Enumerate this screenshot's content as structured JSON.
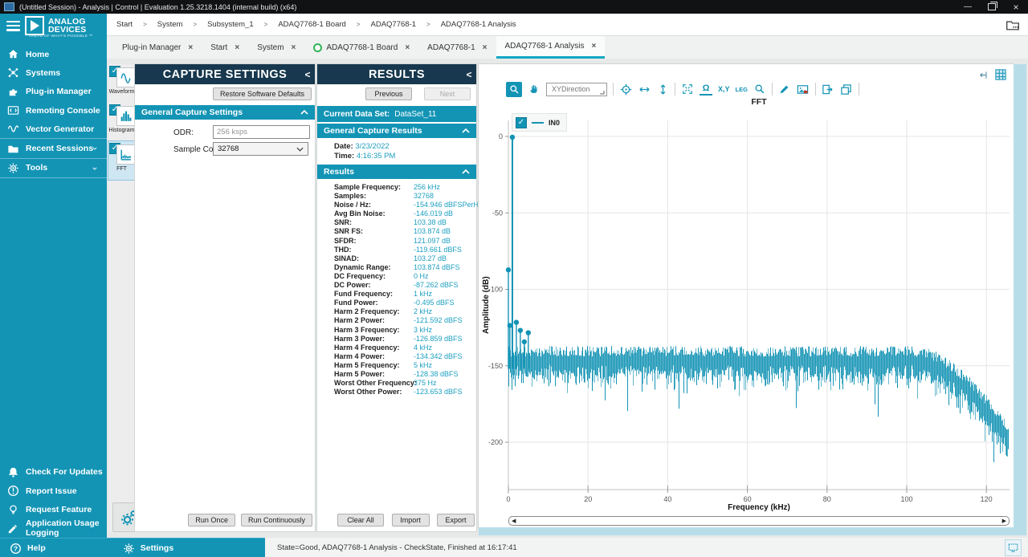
{
  "window": {
    "title": "(Untitled Session) - Analysis | Control | Evaluation 1.25.3218.1404 (internal build) (x64)",
    "minimize_glyph": "—",
    "close_glyph": "×"
  },
  "brand": {
    "line1": "ANALOG",
    "line2": "DEVICES",
    "tagline": "AHEAD OF WHAT'S POSSIBLE ™"
  },
  "breadcrumb": {
    "separator": ">",
    "items": [
      "Start",
      "System",
      "Subsystem_1",
      "ADAQ7768-1 Board",
      "ADAQ7768-1",
      "ADAQ7768-1 Analysis"
    ]
  },
  "tabs": {
    "close_glyph": "×",
    "items": [
      {
        "label": "Plug-in Manager"
      },
      {
        "label": "Start"
      },
      {
        "label": "System"
      },
      {
        "label": "ADAQ7768-1 Board",
        "dot": true
      },
      {
        "label": "ADAQ7768-1"
      },
      {
        "label": "ADAQ7768-1 Analysis",
        "active": true
      }
    ]
  },
  "sidebar": {
    "top": [
      {
        "icon": "home-icon",
        "label": "Home"
      },
      {
        "icon": "systems-icon",
        "label": "Systems"
      },
      {
        "icon": "plugin-icon",
        "label": "Plug-in Manager"
      },
      {
        "icon": "console-icon",
        "label": "Remoting Console"
      },
      {
        "icon": "vector-icon",
        "label": "Vector Generator"
      },
      {
        "icon": "sessions-icon",
        "label": "Recent Sessions",
        "chevron": true,
        "divider": true
      },
      {
        "icon": "tools-icon",
        "label": "Tools",
        "chevron": true,
        "divider": true,
        "divider_bottom": true
      }
    ],
    "bottom": [
      {
        "icon": "bell-icon",
        "label": "Check For Updates"
      },
      {
        "icon": "report-icon",
        "label": "Report Issue"
      },
      {
        "icon": "bulb-icon",
        "label": "Request Feature"
      },
      {
        "icon": "logging-icon",
        "label": "Application Usage Logging"
      }
    ],
    "help_label": "Help",
    "settings_label": "Settings"
  },
  "toolstrip": {
    "items": [
      {
        "icon": "waveform-icon",
        "label": "Waveform",
        "checked": true
      },
      {
        "icon": "histogram-icon",
        "label": "Histogram",
        "checked": true
      },
      {
        "icon": "fft-icon",
        "label": "FFT",
        "checked": true,
        "selected": true
      }
    ]
  },
  "capture": {
    "title": "CAPTURE SETTINGS",
    "restore_label": "Restore Software Defaults",
    "section_label": "General Capture Settings",
    "odr_label": "ODR:",
    "odr_value": "256 ksps",
    "sample_count_label": "Sample Count:",
    "sample_count_value": "32768",
    "run_once_label": "Run Once",
    "run_continuously_label": "Run Continuously"
  },
  "results": {
    "title": "RESULTS",
    "previous_label": "Previous",
    "next_label": "Next",
    "dataset_label": "Current Data Set:",
    "dataset_value": "DataSet_11",
    "general_label": "General Capture Results",
    "date_label": "Date:",
    "date_value": "3/23/2022",
    "time_label": "Time:",
    "time_value": "4:16:35 PM",
    "section_label": "Results",
    "rows": [
      [
        "Sample Frequency:",
        "256 kHz"
      ],
      [
        "Samples:",
        "32768"
      ],
      [
        "Noise / Hz:",
        "-154.946 dBFSPerHz"
      ],
      [
        "Avg Bin Noise:",
        "-146.019 dB"
      ],
      [
        "SNR:",
        "103.38 dB"
      ],
      [
        "SNR FS:",
        "103.874 dB"
      ],
      [
        "SFDR:",
        "121.097 dB"
      ],
      [
        "THD:",
        "-119.661 dBFS"
      ],
      [
        "SINAD:",
        "103.27 dB"
      ],
      [
        "Dynamic Range:",
        "103.874 dBFS"
      ],
      [
        "DC Frequency:",
        "0 Hz"
      ],
      [
        "DC Power:",
        "-87.262 dBFS"
      ],
      [
        "Fund Frequency:",
        "1 kHz"
      ],
      [
        "Fund Power:",
        "-0.495 dBFS"
      ],
      [
        "Harm 2 Frequency:",
        "2 kHz"
      ],
      [
        "Harm 2 Power:",
        "-121.592 dBFS"
      ],
      [
        "Harm 3 Frequency:",
        "3 kHz"
      ],
      [
        "Harm 3 Power:",
        "-126.859 dBFS"
      ],
      [
        "Harm 4 Frequency:",
        "4 kHz"
      ],
      [
        "Harm 4 Power:",
        "-134.342 dBFS"
      ],
      [
        "Harm 5 Frequency:",
        "5 kHz"
      ],
      [
        "Harm 5 Power:",
        "-128.38 dBFS"
      ],
      [
        "Worst Other Frequency:",
        "375 Hz"
      ],
      [
        "Worst Other Power:",
        "-123.653 dBFS"
      ]
    ],
    "clear_label": "Clear All",
    "import_label": "Import",
    "export_label": "Export"
  },
  "chart_toolbar": {
    "xydirection_label": "XYDirection",
    "xy_label": "X,Y",
    "leg_label": "LEG",
    "omega_glyph": "Ω"
  },
  "chart_data": {
    "type": "line",
    "title": "FFT",
    "xlabel": "Frequency (kHz)",
    "ylabel": "Amplitude (dB)",
    "xlim": [
      0,
      128
    ],
    "ylim": [
      -230,
      10
    ],
    "x_ticks": [
      0,
      20,
      40,
      60,
      80,
      100,
      120
    ],
    "y_ticks": [
      0,
      -50,
      -100,
      -150,
      -200
    ],
    "grid": true,
    "legend": {
      "label": "IN0",
      "checked": true,
      "position": "top-left"
    },
    "series": [
      {
        "name": "IN0",
        "color": "#1293b5"
      }
    ],
    "spikes": [
      {
        "freq_khz": 0,
        "dbfs": -87.262,
        "marker": true
      },
      {
        "freq_khz": 0.375,
        "dbfs": -123.653,
        "marker": true
      },
      {
        "freq_khz": 1,
        "dbfs": -0.495,
        "marker": true
      },
      {
        "freq_khz": 2,
        "dbfs": -121.592,
        "marker": true
      },
      {
        "freq_khz": 3,
        "dbfs": -126.859,
        "marker": true
      },
      {
        "freq_khz": 4,
        "dbfs": -134.342,
        "marker": true
      },
      {
        "freq_khz": 5,
        "dbfs": -128.38,
        "marker": true
      }
    ],
    "noise_floor": {
      "top_dbfs": -137,
      "spread_db": 7,
      "typ_depth_db": 12,
      "deep_depth_db": 34,
      "deep_prob": 0.07,
      "rolloff_start_khz": 103,
      "rolloff_end_khz": 126,
      "rolloff_depth_db": 52
    },
    "scroll_left_glyph": "◀",
    "scroll_right_glyph": "▶"
  },
  "status": {
    "text": "State=Good, ADAQ7768-1 Analysis - CheckState, Finished at 16:17:41"
  }
}
